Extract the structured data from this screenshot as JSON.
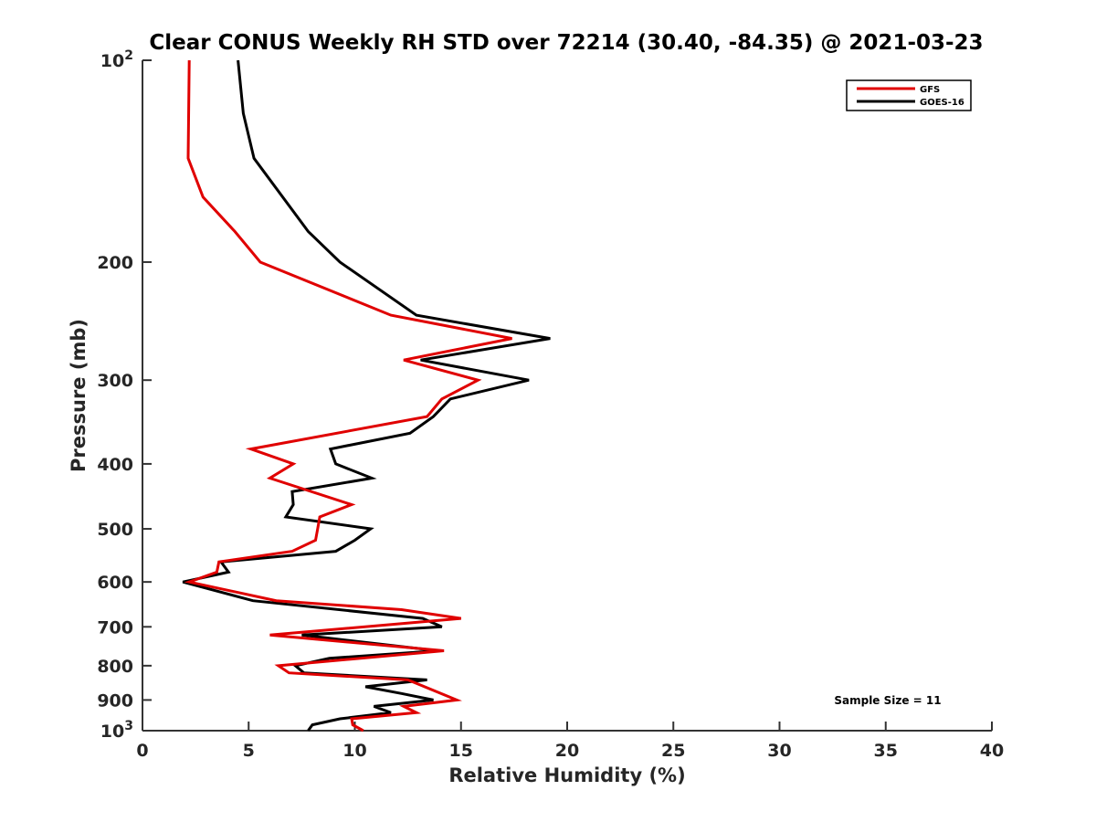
{
  "chart_data": {
    "type": "line",
    "title": "Clear CONUS Weekly RH STD over 72214 (30.40, -84.35) @ 2021-03-23",
    "xlabel": "Relative Humidity (%)",
    "ylabel": "Pressure (mb)",
    "xlim": [
      0,
      40
    ],
    "ylim": [
      1000,
      100
    ],
    "yscale": "log",
    "y_inverted": true,
    "grid": false,
    "xticks": [
      0,
      5,
      10,
      15,
      20,
      25,
      30,
      35,
      40
    ],
    "xtick_labels": [
      "0",
      "5",
      "10",
      "15",
      "20",
      "25",
      "30",
      "35",
      "40"
    ],
    "yticks": [
      100,
      200,
      300,
      400,
      500,
      600,
      700,
      800,
      900,
      1000
    ],
    "ytick_labels": [
      "10^2",
      "200",
      "300",
      "400",
      "500",
      "600",
      "700",
      "800",
      "900",
      "10^3"
    ],
    "legend_position": "top-right",
    "annotation": "Sample Size = 11",
    "series": [
      {
        "name": "GFS",
        "color": "#e00000",
        "pressure": [
          100,
          140,
          160,
          180,
          200,
          240,
          260,
          280,
          300,
          320,
          340,
          380,
          400,
          420,
          460,
          480,
          500,
          520,
          540,
          560,
          580,
          600,
          640,
          660,
          680,
          720,
          760,
          800,
          820,
          840,
          900,
          920,
          940,
          960,
          980,
          1000
        ],
        "values": [
          2.2,
          2.15,
          2.85,
          4.35,
          5.55,
          11.7,
          17.4,
          12.3,
          15.8,
          14.1,
          13.4,
          5.1,
          7.1,
          6.0,
          9.85,
          8.35,
          8.25,
          8.15,
          7.05,
          3.6,
          3.5,
          2.2,
          6.3,
          12.2,
          15.0,
          6.0,
          14.2,
          6.4,
          6.9,
          12.5,
          14.8,
          12.3,
          12.9,
          9.85,
          9.9,
          10.4
        ]
      },
      {
        "name": "GOES-16",
        "color": "#000000",
        "pressure": [
          100,
          120,
          140,
          180,
          200,
          240,
          260,
          280,
          300,
          320,
          340,
          360,
          380,
          400,
          420,
          440,
          460,
          480,
          500,
          520,
          540,
          560,
          580,
          600,
          640,
          680,
          700,
          720,
          760,
          780,
          800,
          820,
          840,
          860,
          880,
          900,
          920,
          940,
          960,
          980,
          1000
        ],
        "values": [
          4.5,
          4.75,
          5.25,
          7.8,
          9.3,
          12.9,
          19.2,
          13.1,
          18.2,
          14.5,
          13.7,
          12.6,
          8.85,
          9.1,
          10.8,
          7.05,
          7.1,
          6.75,
          10.75,
          10.0,
          9.1,
          3.7,
          4.05,
          1.9,
          5.2,
          13.2,
          14.1,
          7.5,
          13.9,
          8.8,
          7.2,
          7.6,
          13.4,
          10.5,
          12.2,
          13.7,
          10.9,
          11.7,
          9.3,
          8.0,
          7.8
        ]
      }
    ]
  }
}
